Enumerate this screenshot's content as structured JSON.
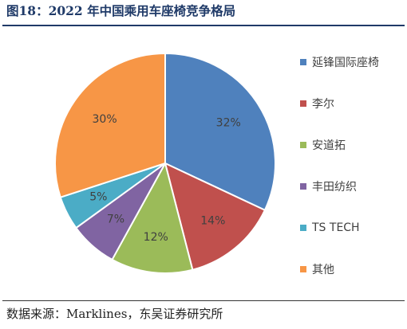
{
  "header": {
    "title": "图18：2022 年中国乘用车座椅竞争格局"
  },
  "footer": {
    "source": "数据来源：Marklines，东吴证券研究所"
  },
  "chart_data": {
    "type": "pie",
    "title": "图18：2022 年中国乘用车座椅竞争格局",
    "legend_position": "right",
    "slices": [
      {
        "label": "延锋国际座椅",
        "value": 32,
        "display": "32%",
        "color": "#4f81bd"
      },
      {
        "label": "李尔",
        "value": 14,
        "display": "14%",
        "color": "#c0504d"
      },
      {
        "label": "安道拓",
        "value": 12,
        "display": "12%",
        "color": "#9bbb59"
      },
      {
        "label": "丰田纺织",
        "value": 7,
        "display": "7%",
        "color": "#8064a2"
      },
      {
        "label": "TS TECH",
        "value": 5,
        "display": "5%",
        "color": "#4bacc6"
      },
      {
        "label": "其他",
        "value": 30,
        "display": "30%",
        "color": "#f79646"
      }
    ]
  }
}
